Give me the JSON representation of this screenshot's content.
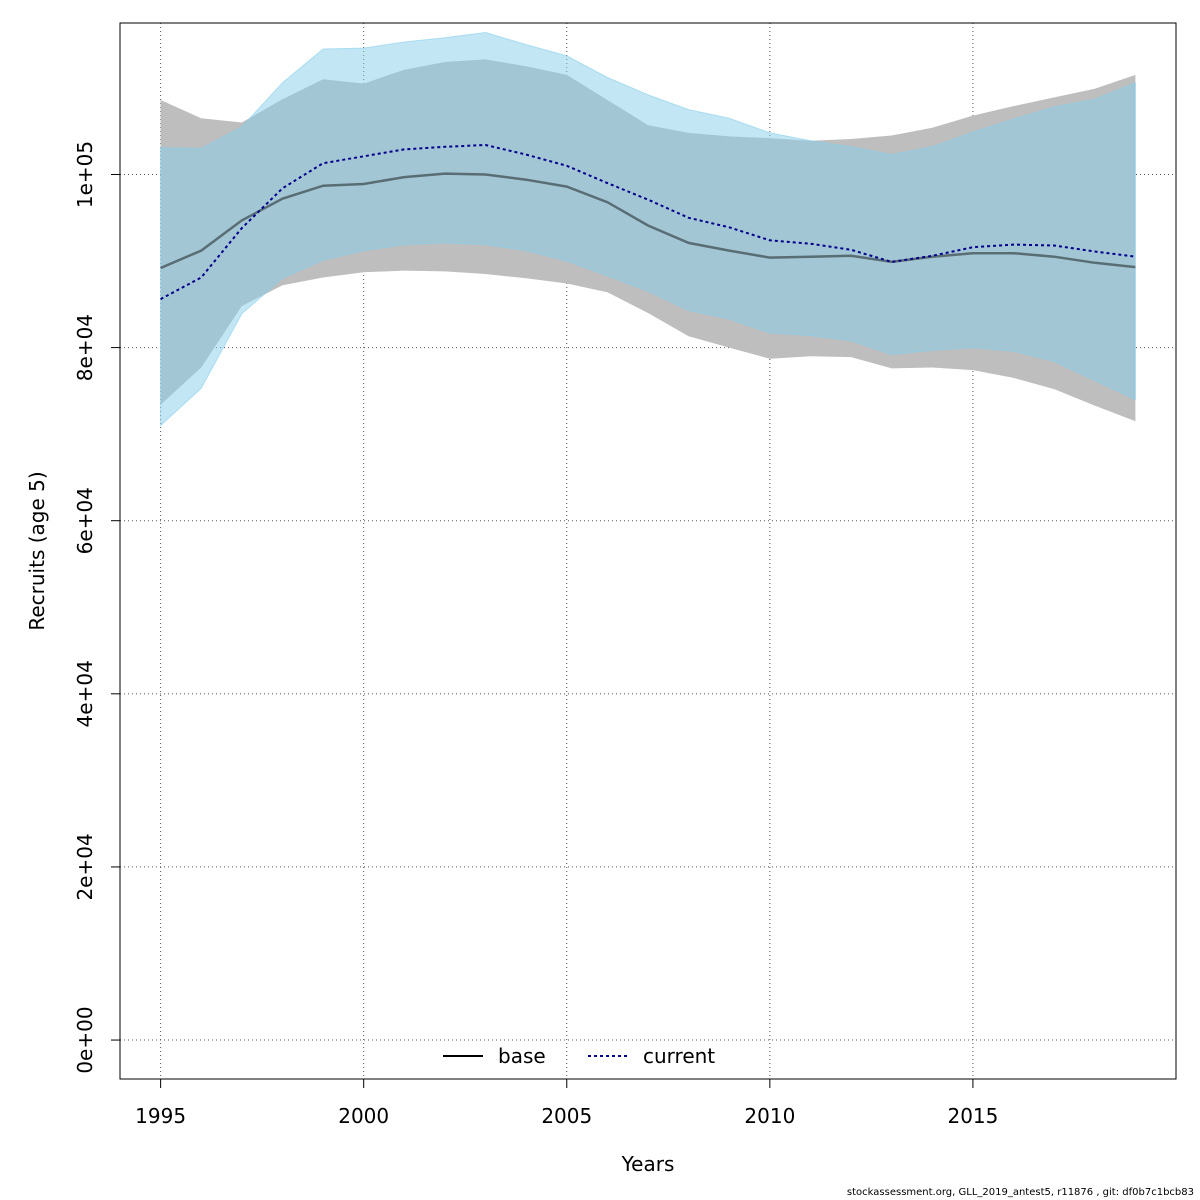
{
  "footer": "stockassessment.org, GLL_2019_antest5, r11876 , git: df0b7c1bcb83",
  "chart_data": {
    "type": "area",
    "xlabel": "Years",
    "ylabel": "Recruits (age 5)",
    "xlim": [
      1994,
      2020
    ],
    "ylim": [
      -4500,
      117500
    ],
    "x_ticks": [
      1995,
      2000,
      2005,
      2010,
      2015
    ],
    "y_ticks": [
      0,
      20000,
      40000,
      60000,
      80000,
      100000
    ],
    "y_tick_labels": [
      "0e+00",
      "2e+04",
      "4e+04",
      "6e+04",
      "8e+04",
      "1e+05"
    ],
    "grid": true,
    "legend_position": "bottom",
    "colors": {
      "base_band": "#bebebe",
      "current_band": "#87ceeb",
      "base_line": "#000000",
      "current_line": "#00008b",
      "grid": "#555555"
    },
    "x": [
      1995,
      1996,
      1997,
      1998,
      1999,
      2000,
      2001,
      2002,
      2003,
      2004,
      2005,
      2006,
      2007,
      2008,
      2009,
      2010,
      2011,
      2012,
      2013,
      2014,
      2015,
      2016,
      2017,
      2018,
      2019
    ],
    "series": [
      {
        "name": "base",
        "values": [
          89200,
          91200,
          94700,
          97200,
          98700,
          98900,
          99700,
          100100,
          100000,
          99400,
          98600,
          96800,
          94100,
          92100,
          91200,
          90400,
          90500,
          90600,
          89900,
          90500,
          90900,
          90900,
          90500,
          89800,
          89300
        ],
        "lower": [
          73400,
          77700,
          84800,
          87200,
          88100,
          88700,
          88900,
          88800,
          88500,
          88000,
          87400,
          86400,
          84000,
          81300,
          80000,
          78700,
          79000,
          78900,
          77600,
          77700,
          77400,
          76500,
          75200,
          73300,
          71500
        ],
        "upper": [
          108600,
          106500,
          106000,
          108700,
          111000,
          110500,
          112100,
          113000,
          113300,
          112500,
          111500,
          108600,
          105700,
          104800,
          104400,
          104200,
          103900,
          104100,
          104500,
          105400,
          106800,
          107900,
          108900,
          109900,
          111500
        ]
      },
      {
        "name": "current",
        "values": [
          85600,
          88100,
          93800,
          98400,
          101300,
          102100,
          102900,
          103200,
          103400,
          102300,
          101000,
          99000,
          97100,
          95000,
          93900,
          92400,
          92000,
          91300,
          89900,
          90600,
          91600,
          91900,
          91800,
          91100,
          90500
        ],
        "lower": [
          71000,
          75300,
          83900,
          88000,
          90100,
          91200,
          91900,
          92100,
          91900,
          91200,
          90000,
          88300,
          86500,
          84300,
          83300,
          81700,
          81400,
          80800,
          79200,
          79700,
          80000,
          79600,
          78400,
          76200,
          74000
        ],
        "upper": [
          103100,
          103000,
          105500,
          110600,
          114500,
          114600,
          115300,
          115800,
          116400,
          115000,
          113700,
          111200,
          109200,
          107500,
          106500,
          104800,
          103900,
          103200,
          102300,
          103200,
          104900,
          106400,
          107800,
          108700,
          110600
        ]
      }
    ]
  }
}
